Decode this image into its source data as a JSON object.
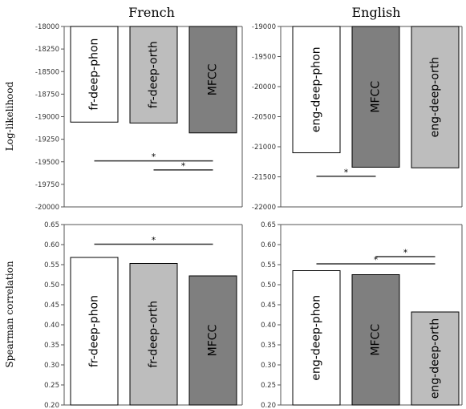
{
  "column_titles": [
    "French",
    "English"
  ],
  "row_ylabels": [
    "Log-likelihood",
    "Spearman correlation"
  ],
  "colors": {
    "fr-deep-phon": "#ffffff",
    "fr-deep-orth": "#bdbdbd",
    "eng-deep-phon": "#ffffff",
    "eng-deep-orth": "#bdbdbd",
    "MFCC": "#7f7f7f",
    "axis": "#555555",
    "bar_edge": "#000000"
  },
  "chart_data": [
    {
      "type": "bar",
      "column": "French",
      "ylabel": "Log-likelihood",
      "categories": [
        "fr-deep-phon",
        "fr-deep-orth",
        "MFCC"
      ],
      "values": [
        -19060,
        -19070,
        -19180
      ],
      "ylim": [
        -20000,
        -18000
      ],
      "yticks": [
        "-18000",
        "-18250",
        "-18500",
        "-18750",
        "-19000",
        "-19250",
        "-19500",
        "-19750",
        "-20000"
      ],
      "ytick_values": [
        -18000,
        -18250,
        -18500,
        -18750,
        -19000,
        -19250,
        -19500,
        -19750,
        -20000
      ],
      "orientation": "down",
      "significance": [
        {
          "from": "fr-deep-phon",
          "to": "MFCC",
          "level": -19490,
          "label": "*"
        },
        {
          "from": "fr-deep-orth",
          "to": "MFCC",
          "level": -19590,
          "label": "*"
        }
      ]
    },
    {
      "type": "bar",
      "column": "English",
      "ylabel": "",
      "categories": [
        "eng-deep-phon",
        "MFCC",
        "eng-deep-orth"
      ],
      "values": [
        -21100,
        -21340,
        -21350
      ],
      "ylim": [
        -22000,
        -19000
      ],
      "yticks": [
        "-19000",
        "-19500",
        "-20000",
        "-20500",
        "-21000",
        "-21500",
        "-22000"
      ],
      "ytick_values": [
        -19000,
        -19500,
        -20000,
        -20500,
        -21000,
        -21500,
        -22000
      ],
      "orientation": "down",
      "significance": [
        {
          "from": "eng-deep-phon",
          "to": "MFCC",
          "level": -21490,
          "label": "*"
        }
      ]
    },
    {
      "type": "bar",
      "column": "French",
      "ylabel": "Spearman correlation",
      "categories": [
        "fr-deep-phon",
        "fr-deep-orth",
        "MFCC"
      ],
      "values": [
        0.568,
        0.553,
        0.522
      ],
      "ylim": [
        0.2,
        0.65
      ],
      "yticks": [
        "0.65",
        "0.60",
        "0.55",
        "0.50",
        "0.45",
        "0.40",
        "0.35",
        "0.30",
        "0.25",
        "0.20"
      ],
      "ytick_values": [
        0.65,
        0.6,
        0.55,
        0.5,
        0.45,
        0.4,
        0.35,
        0.3,
        0.25,
        0.2
      ],
      "orientation": "up",
      "significance": [
        {
          "from": "fr-deep-phon",
          "to": "MFCC",
          "level": 0.601,
          "label": "*"
        }
      ]
    },
    {
      "type": "bar",
      "column": "English",
      "ylabel": "",
      "categories": [
        "eng-deep-phon",
        "MFCC",
        "eng-deep-orth"
      ],
      "values": [
        0.535,
        0.525,
        0.432
      ],
      "ylim": [
        0.2,
        0.65
      ],
      "yticks": [
        "0.65",
        "0.60",
        "0.55",
        "0.50",
        "0.45",
        "0.40",
        "0.35",
        "0.30",
        "0.25",
        "0.20"
      ],
      "ytick_values": [
        0.65,
        0.6,
        0.55,
        0.5,
        0.45,
        0.4,
        0.35,
        0.3,
        0.25,
        0.2
      ],
      "orientation": "up",
      "significance": [
        {
          "from": "MFCC",
          "to": "eng-deep-orth",
          "level": 0.57,
          "label": "*"
        },
        {
          "from": "eng-deep-phon",
          "to": "eng-deep-orth",
          "level": 0.552,
          "label": "*"
        }
      ]
    }
  ]
}
